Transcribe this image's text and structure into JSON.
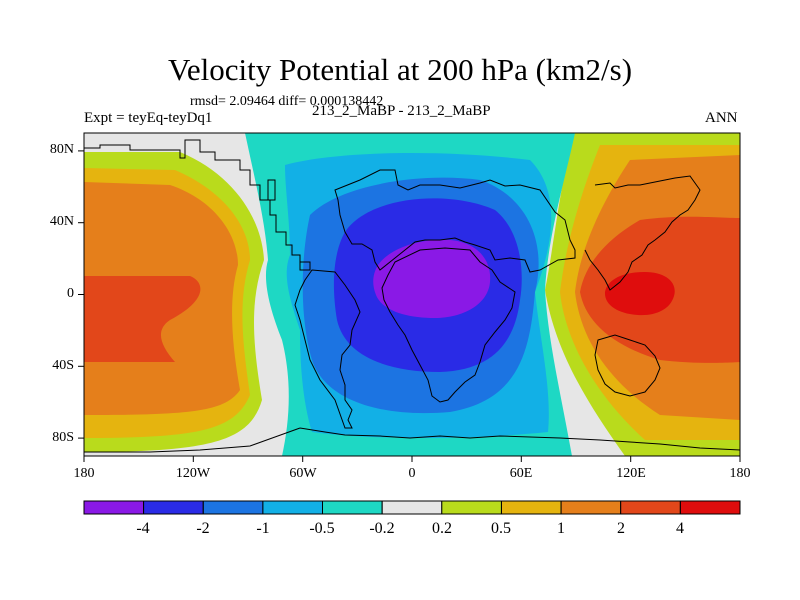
{
  "title": "Velocity Potential at 200 hPa (km2/s)",
  "stats": "rmsd= 2.09464  diff= 0.000138442",
  "left_label": "Expt = teyEq-teyDq1",
  "center_label": "213_2_MaBP - 213_2_MaBP",
  "right_label": "ANN",
  "map": {
    "projection": "cylindrical equidistant",
    "lon_range": [
      -180,
      180
    ],
    "lat_range": [
      -90,
      90
    ],
    "x_ticks": [
      {
        "lon": -180,
        "label": "180"
      },
      {
        "lon": -120,
        "label": "120W"
      },
      {
        "lon": -60,
        "label": "60W"
      },
      {
        "lon": 0,
        "label": "0"
      },
      {
        "lon": 60,
        "label": "60E"
      },
      {
        "lon": 120,
        "label": "120E"
      },
      {
        "lon": 180,
        "label": "180"
      }
    ],
    "y_ticks": [
      {
        "lat": 80,
        "label": "80N"
      },
      {
        "lat": 40,
        "label": "40N"
      },
      {
        "lat": 0,
        "label": "0"
      },
      {
        "lat": -40,
        "label": "40S"
      },
      {
        "lat": -80,
        "label": "80S"
      }
    ],
    "pattern": "Zonal wavenumber-1 dipole: minimum (about -5) centred near 10E on the equator, maximum (about +5) centred near 125E on the equator"
  },
  "colorbar": {
    "levels": [
      "-4",
      "-2",
      "-1",
      "-0.5",
      "-0.2",
      "0.2",
      "0.5",
      "1",
      "2",
      "4"
    ],
    "colors": [
      "#8a19e6",
      "#2a2be6",
      "#1c74e2",
      "#12b0e6",
      "#1ed8c4",
      "#e6e6e6",
      "#b9db1c",
      "#e5b40f",
      "#e57f1b",
      "#e2471a",
      "#df0d0d"
    ]
  }
}
